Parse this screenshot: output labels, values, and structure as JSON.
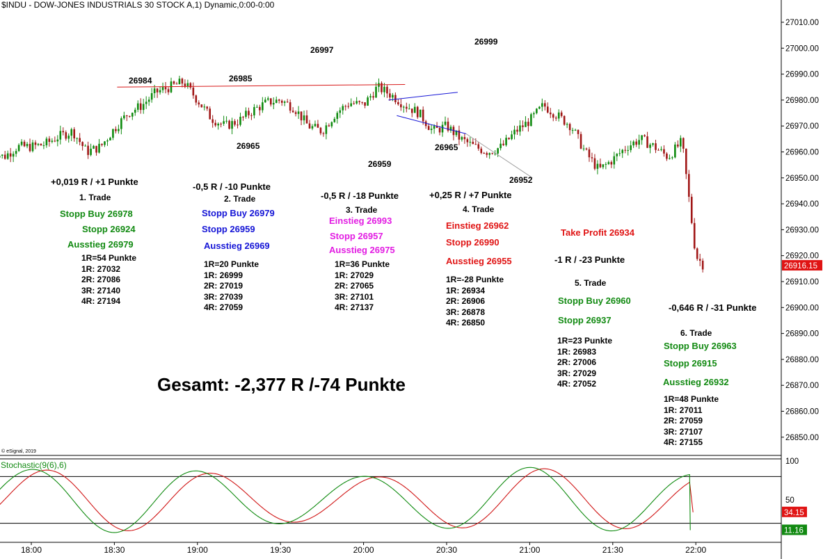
{
  "title": "$INDU - DOW-JONES INDUSTRIALS 30 STOCK A,1) Dynamic,0:00-0:00",
  "copyright": "© eSignal, 2019",
  "colors": {
    "up": "#0e8a0e",
    "down": "#a01616",
    "bg": "#ffffff",
    "green": "#128a12",
    "blue": "#1414d6",
    "magenta": "#e21ce2",
    "red": "#e01414",
    "resistance": "#d81818",
    "triangle": "#1414d6",
    "support": "#a0a0a0"
  },
  "price_axis": {
    "ticks": [
      "27010.00",
      "27000.00",
      "26990.00",
      "26980.00",
      "26970.00",
      "26960.00",
      "26950.00",
      "26940.00",
      "26930.00",
      "26920.00",
      "26910.00",
      "26900.00",
      "26890.00",
      "26880.00",
      "26870.00",
      "26860.00",
      "26850.00"
    ],
    "last_price": "26916.15"
  },
  "time_axis": {
    "ticks": [
      "18:00",
      "18:30",
      "19:00",
      "19:30",
      "20:00",
      "20:30",
      "21:00",
      "21:30",
      "22:00"
    ]
  },
  "stoch_axis": {
    "ticks": [
      "100",
      "50"
    ],
    "k_value": "34.15",
    "d_value": "11.16"
  },
  "stoch_label": "Stochastic(9(6),6)",
  "peak_labels": [
    "26984",
    "26985",
    "26997",
    "26999",
    "26965",
    "26959",
    "26965",
    "26952"
  ],
  "trades": [
    {
      "header": "+0,019 R / +1 Punkte",
      "number": "1. Trade",
      "lines": [
        {
          "text": "Stopp Buy 26978",
          "color": "green"
        },
        {
          "text": "Stopp 26924",
          "color": "green"
        },
        {
          "text": "Ausstieg 26979",
          "color": "green"
        }
      ],
      "r_values": [
        "1R=54 Punkte",
        "1R: 27032",
        "2R: 27086",
        "3R: 27140",
        "4R: 27194"
      ]
    },
    {
      "header": "-0,5 R / -10 Punkte",
      "number": "2. Trade",
      "lines": [
        {
          "text": "Stopp Buy 26979",
          "color": "blue"
        },
        {
          "text": "Stopp 26959",
          "color": "blue"
        },
        {
          "text": "Ausstieg 26969",
          "color": "blue"
        }
      ],
      "r_values": [
        "1R=20 Punkte",
        "1R: 26999",
        "2R: 27019",
        "3R: 27039",
        "4R: 27059"
      ]
    },
    {
      "header": "-0,5 R / -18 Punkte",
      "number": "3. Trade",
      "lines": [
        {
          "text": "Einstieg 26993",
          "color": "magenta"
        },
        {
          "text": "Stopp 26957",
          "color": "magenta"
        },
        {
          "text": "Ausstieg 26975",
          "color": "magenta"
        }
      ],
      "r_values": [
        "1R=36 Punkte",
        "1R: 27029",
        "2R: 27065",
        "3R: 27101",
        "4R: 27137"
      ]
    },
    {
      "header": "+0,25 R / +7 Punkte",
      "number": "4. Trade",
      "lines": [
        {
          "text": "Einstieg 26962",
          "color": "red"
        },
        {
          "text": "Stopp 26990",
          "color": "red"
        },
        {
          "text": "Ausstieg 26955",
          "color": "red"
        }
      ],
      "r_values": [
        "1R=-28 Punkte",
        "1R: 26934",
        "2R: 26906",
        "3R: 26878",
        "4R: 26850"
      ]
    },
    {
      "header": "-1 R / -23 Punkte",
      "number": "5. Trade",
      "lines": [
        {
          "text": "Stopp Buy 26960",
          "color": "green"
        },
        {
          "text": "Stopp 26937",
          "color": "green"
        }
      ],
      "extra": {
        "text": "Take Profit 26934",
        "color": "red"
      },
      "r_values": [
        "1R=23 Punkte",
        "1R: 26983",
        "2R: 27006",
        "3R: 27029",
        "4R: 27052"
      ]
    },
    {
      "header": "-0,646 R / -31 Punkte",
      "number": "6. Trade",
      "lines": [
        {
          "text": "Stopp Buy 26963",
          "color": "green"
        },
        {
          "text": "Stopp 26915",
          "color": "green"
        },
        {
          "text": "Ausstieg 26932",
          "color": "green"
        }
      ],
      "r_values": [
        "1R=48 Punkte",
        "1R: 27011",
        "2R: 27059",
        "3R: 27107",
        "4R: 27155"
      ]
    }
  ],
  "total": "Gesamt: -2,377 R /-74 Punkte",
  "chart_data": {
    "type": "candlestick",
    "title": "$INDU - DOW-JONES INDUSTRIALS 30 STOCK A,1) Dynamic,0:00-0:00",
    "x_range": [
      "17:45",
      "22:03"
    ],
    "ylim": [
      26843,
      27015
    ],
    "grid": false,
    "close_anchors": [
      [
        "17:45",
        26961
      ],
      [
        "17:50",
        26958
      ],
      [
        "17:55",
        26962
      ],
      [
        "18:00",
        26962
      ],
      [
        "18:05",
        26963
      ],
      [
        "18:10",
        26966
      ],
      [
        "18:15",
        26968
      ],
      [
        "18:20",
        26960
      ],
      [
        "18:25",
        26962
      ],
      [
        "18:30",
        26969
      ],
      [
        "18:35",
        26975
      ],
      [
        "18:40",
        26978
      ],
      [
        "18:45",
        26983
      ],
      [
        "18:50",
        26985
      ],
      [
        "18:55",
        26987
      ],
      [
        "19:00",
        26980
      ],
      [
        "19:05",
        26973
      ],
      [
        "19:10",
        26970
      ],
      [
        "19:15",
        26972
      ],
      [
        "19:20",
        26976
      ],
      [
        "19:25",
        26979
      ],
      [
        "19:30",
        26980
      ],
      [
        "19:35",
        26977
      ],
      [
        "19:40",
        26970
      ],
      [
        "19:45",
        26968
      ],
      [
        "19:50",
        26975
      ],
      [
        "19:55",
        26979
      ],
      [
        "20:00",
        26978
      ],
      [
        "20:05",
        26985
      ],
      [
        "20:10",
        26982
      ],
      [
        "20:15",
        26978
      ],
      [
        "20:20",
        26975
      ],
      [
        "20:25",
        26968
      ],
      [
        "20:30",
        26970
      ],
      [
        "20:35",
        26965
      ],
      [
        "20:40",
        26962
      ],
      [
        "20:45",
        26960
      ],
      [
        "20:50",
        26962
      ],
      [
        "20:55",
        26968
      ],
      [
        "21:00",
        26972
      ],
      [
        "21:05",
        26978
      ],
      [
        "21:10",
        26974
      ],
      [
        "21:15",
        26970
      ],
      [
        "21:20",
        26960
      ],
      [
        "21:25",
        26953
      ],
      [
        "21:30",
        26957
      ],
      [
        "21:35",
        26962
      ],
      [
        "21:40",
        26965
      ],
      [
        "21:45",
        26962
      ],
      [
        "21:50",
        26958
      ],
      [
        "21:55",
        26964
      ],
      [
        "22:00",
        26920
      ],
      [
        "22:03",
        26916
      ]
    ],
    "marked_levels": [
      {
        "label": "26984",
        "time": "18:38",
        "value": 26984,
        "kind": "high"
      },
      {
        "label": "26985",
        "time": "19:18",
        "value": 26985,
        "kind": "high"
      },
      {
        "label": "26997",
        "time": "19:48",
        "value": 26997,
        "kind": "high"
      },
      {
        "label": "26999",
        "time": "20:37",
        "value": 26999,
        "kind": "high"
      },
      {
        "label": "26965",
        "time": "19:18",
        "value": 26965,
        "kind": "low"
      },
      {
        "label": "26959",
        "time": "19:57",
        "value": 26959,
        "kind": "low"
      },
      {
        "label": "26965",
        "time": "20:29",
        "value": 26965,
        "kind": "low"
      },
      {
        "label": "26952",
        "time": "21:00",
        "value": 26952,
        "kind": "low"
      }
    ],
    "lines": [
      {
        "name": "resistance",
        "from": [
          "18:31",
          26985
        ],
        "to": [
          "20:15",
          26986
        ],
        "color": "#d81818"
      },
      {
        "name": "triangle-upper",
        "from": [
          "20:09",
          26980
        ],
        "to": [
          "20:34",
          26983
        ],
        "color": "#1414d6"
      },
      {
        "name": "triangle-lower",
        "from": [
          "20:12",
          26974
        ],
        "to": [
          "20:37",
          26967
        ],
        "color": "#1414d6"
      },
      {
        "name": "support",
        "from": [
          "20:37",
          26967
        ],
        "to": [
          "21:01",
          26950
        ],
        "color": "#a0a0a0"
      }
    ],
    "stochastic": {
      "name": "Stochastic(9(6),6)",
      "ylim": [
        0,
        100
      ],
      "levels": [
        80,
        20
      ],
      "k_last": 34.15,
      "d_last": 11.16
    }
  }
}
